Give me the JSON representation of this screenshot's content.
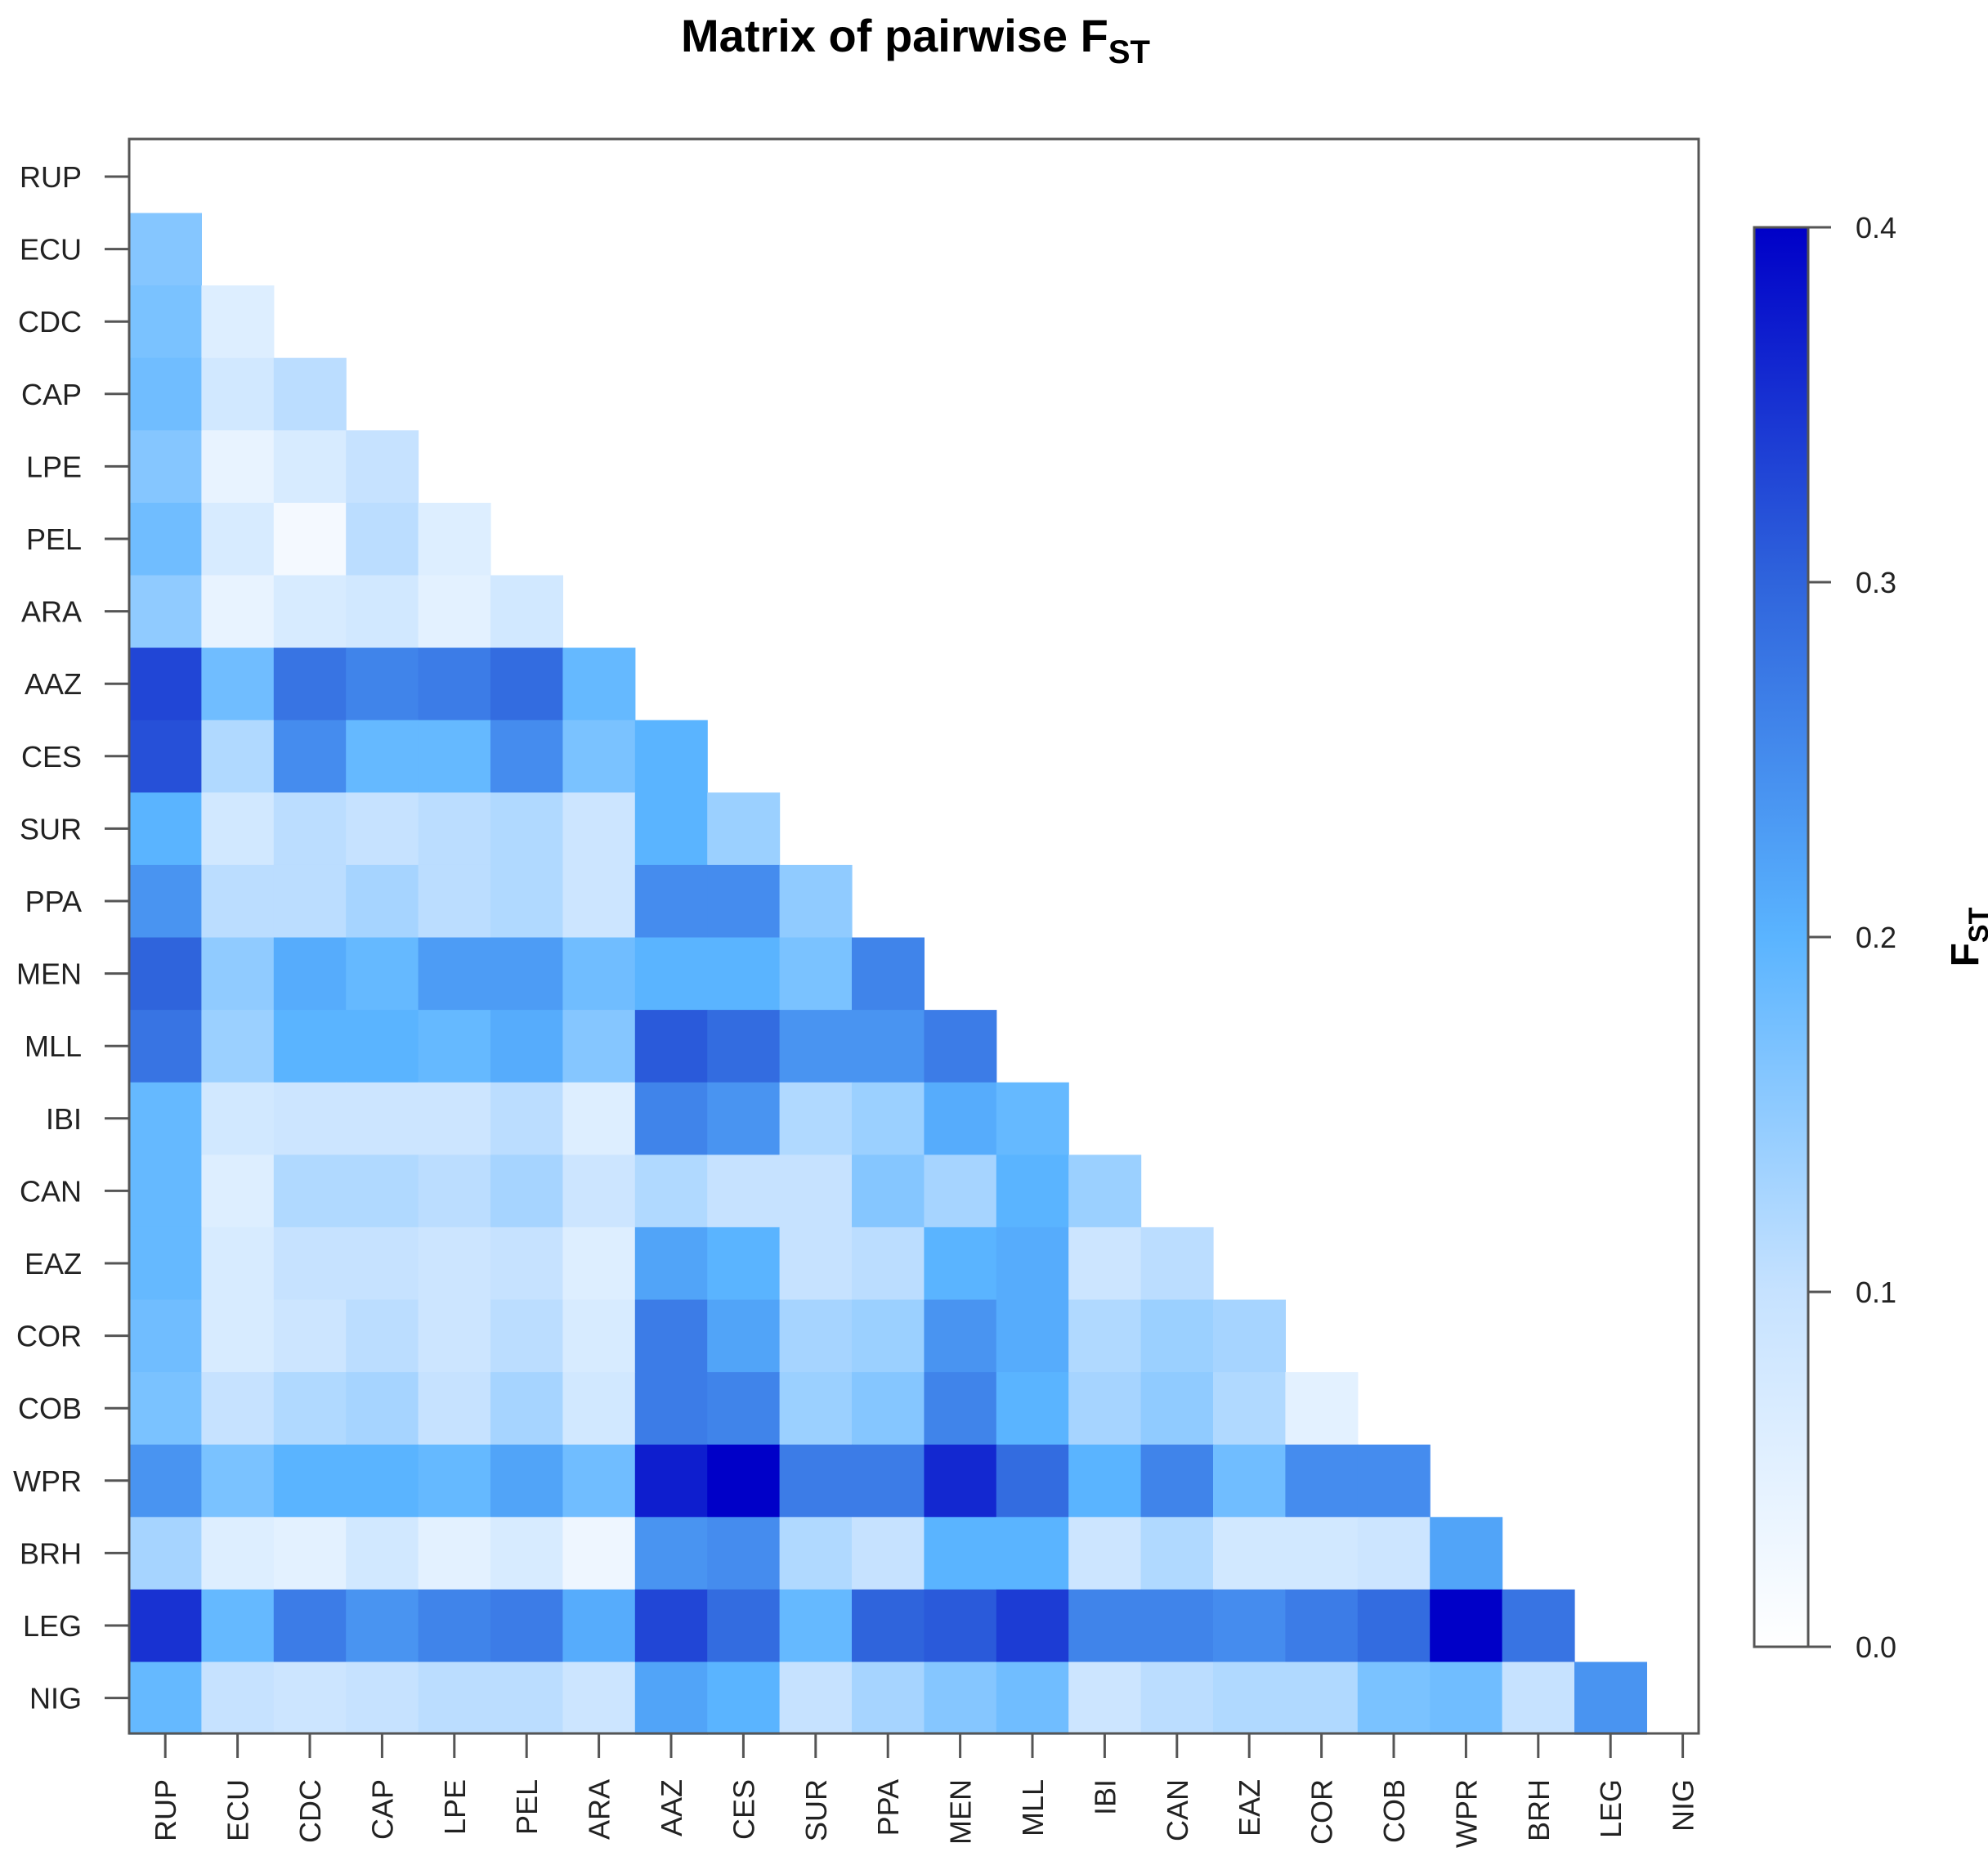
{
  "chart_data": {
    "type": "heatmap",
    "title": "Matrix of pairwise F",
    "title_subscript": "ST",
    "legend_title": "F",
    "legend_title_subscript": "ST",
    "labels": [
      "RUP",
      "ECU",
      "CDC",
      "CAP",
      "LPE",
      "PEL",
      "ARA",
      "AAZ",
      "CES",
      "SUR",
      "PPA",
      "MEN",
      "MLL",
      "IBI",
      "CAN",
      "EAZ",
      "COR",
      "COB",
      "WPR",
      "BRH",
      "LEG",
      "NIG"
    ],
    "colorbar": {
      "min": 0.0,
      "max": 0.4,
      "ticks": [
        0.0,
        0.1,
        0.2,
        0.3,
        0.4
      ],
      "tick_labels": [
        "0.0",
        "0.1",
        "0.2",
        "0.3",
        "0.4"
      ],
      "stops": [
        {
          "v": 0.0,
          "color": "#ffffff"
        },
        {
          "v": 0.1,
          "color": "#c6e2ff"
        },
        {
          "v": 0.2,
          "color": "#5ab4ff"
        },
        {
          "v": 0.3,
          "color": "#2f64dc"
        },
        {
          "v": 0.4,
          "color": "#0000c8"
        }
      ]
    },
    "values": [
      [],
      [
        0.16
      ],
      [
        0.17,
        0.06
      ],
      [
        0.18,
        0.08,
        0.11
      ],
      [
        0.16,
        0.04,
        0.07,
        0.1
      ],
      [
        0.18,
        0.07,
        0.02,
        0.11,
        0.06
      ],
      [
        0.15,
        0.04,
        0.07,
        0.08,
        0.05,
        0.08
      ],
      [
        0.33,
        0.18,
        0.28,
        0.26,
        0.27,
        0.29,
        0.19
      ],
      [
        0.32,
        0.12,
        0.25,
        0.19,
        0.19,
        0.25,
        0.17,
        0.2
      ],
      [
        0.2,
        0.08,
        0.11,
        0.1,
        0.11,
        0.12,
        0.09,
        0.2,
        0.14
      ],
      [
        0.24,
        0.11,
        0.11,
        0.13,
        0.11,
        0.12,
        0.09,
        0.25,
        0.25,
        0.15
      ],
      [
        0.3,
        0.15,
        0.21,
        0.19,
        0.23,
        0.23,
        0.18,
        0.2,
        0.2,
        0.17,
        0.26
      ],
      [
        0.28,
        0.14,
        0.2,
        0.2,
        0.19,
        0.21,
        0.16,
        0.31,
        0.29,
        0.24,
        0.24,
        0.27
      ],
      [
        0.19,
        0.08,
        0.09,
        0.09,
        0.09,
        0.11,
        0.06,
        0.26,
        0.24,
        0.12,
        0.14,
        0.21,
        0.19
      ],
      [
        0.19,
        0.06,
        0.12,
        0.12,
        0.11,
        0.13,
        0.09,
        0.12,
        0.1,
        0.1,
        0.16,
        0.13,
        0.2,
        0.14
      ],
      [
        0.19,
        0.07,
        0.1,
        0.1,
        0.09,
        0.1,
        0.06,
        0.22,
        0.2,
        0.1,
        0.11,
        0.2,
        0.21,
        0.09,
        0.11
      ],
      [
        0.18,
        0.07,
        0.09,
        0.11,
        0.09,
        0.11,
        0.07,
        0.27,
        0.22,
        0.13,
        0.14,
        0.24,
        0.21,
        0.12,
        0.14,
        0.13
      ],
      [
        0.17,
        0.1,
        0.12,
        0.13,
        0.1,
        0.13,
        0.08,
        0.27,
        0.26,
        0.14,
        0.16,
        0.26,
        0.2,
        0.13,
        0.15,
        0.12,
        0.05
      ],
      [
        0.24,
        0.17,
        0.2,
        0.2,
        0.19,
        0.22,
        0.18,
        0.37,
        0.4,
        0.27,
        0.27,
        0.36,
        0.29,
        0.2,
        0.26,
        0.18,
        0.25,
        0.25
      ],
      [
        0.13,
        0.06,
        0.05,
        0.08,
        0.05,
        0.07,
        0.03,
        0.24,
        0.25,
        0.12,
        0.1,
        0.2,
        0.2,
        0.09,
        0.12,
        0.08,
        0.08,
        0.09,
        0.22
      ],
      [
        0.35,
        0.19,
        0.27,
        0.24,
        0.26,
        0.27,
        0.21,
        0.33,
        0.29,
        0.19,
        0.3,
        0.31,
        0.34,
        0.26,
        0.26,
        0.25,
        0.27,
        0.29,
        0.4,
        0.28
      ],
      [
        0.19,
        0.1,
        0.09,
        0.1,
        0.11,
        0.11,
        0.09,
        0.22,
        0.2,
        0.1,
        0.13,
        0.16,
        0.18,
        0.09,
        0.11,
        0.12,
        0.12,
        0.17,
        0.18,
        0.1,
        0.24
      ]
    ]
  }
}
